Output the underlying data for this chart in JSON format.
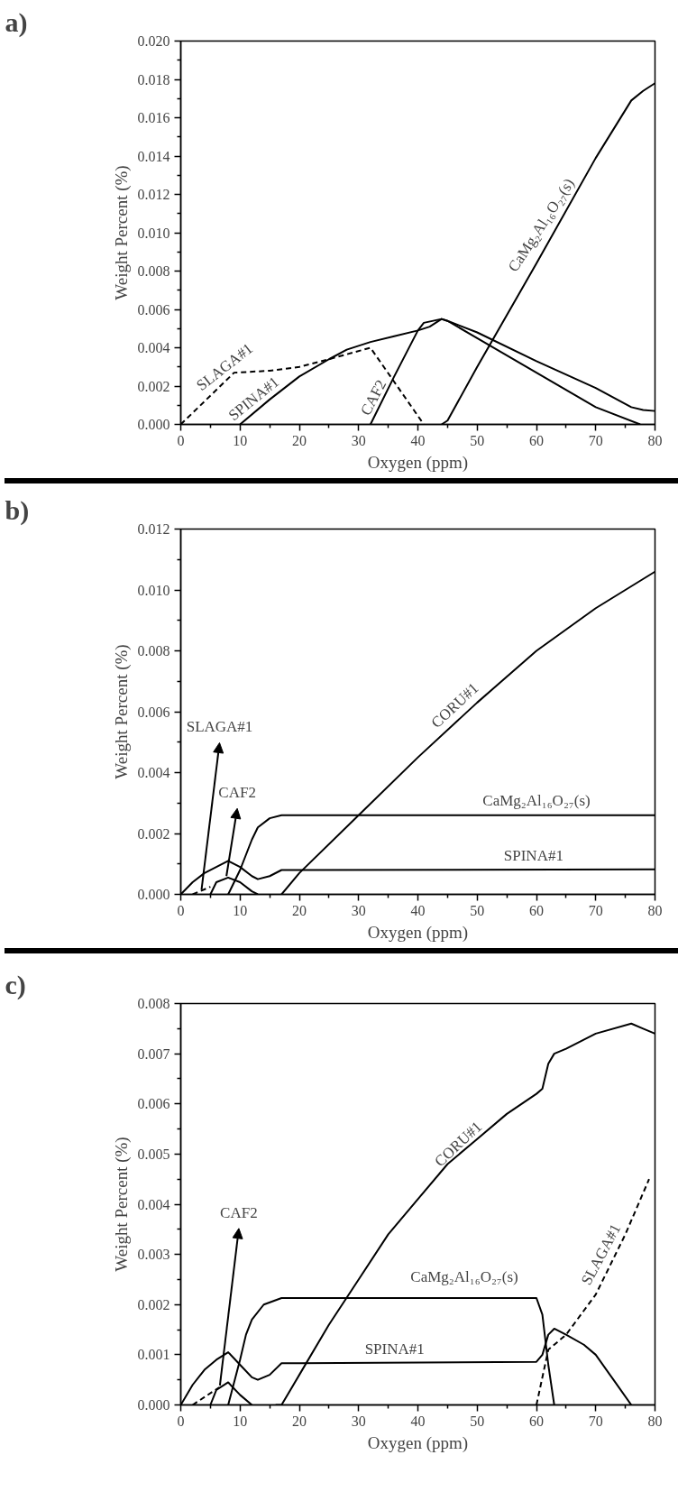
{
  "chart_data": [
    {
      "type": "line",
      "title": "a)",
      "xlabel": "Oxygen (ppm)",
      "ylabel": "Weight Percent (%)",
      "grid": false,
      "xlim": [
        0,
        80
      ],
      "ylim": [
        0,
        0.02
      ],
      "xticks": [
        0,
        10,
        20,
        30,
        40,
        50,
        60,
        70,
        80,
        {
          "value": 5,
          "label": null
        },
        {
          "value": 15,
          "label": null
        },
        {
          "value": 25,
          "label": null
        },
        {
          "value": 35,
          "label": null
        },
        {
          "value": 45,
          "label": null
        },
        {
          "value": 55,
          "label": null
        },
        {
          "value": 65,
          "label": null
        },
        {
          "value": 75,
          "label": null
        }
      ],
      "yticks": [
        {
          "value": 0,
          "label": "0.000"
        },
        0.002,
        0.004,
        0.006,
        0.008,
        {
          "value": 0.01,
          "label": "0.010"
        },
        0.012,
        0.014,
        0.016,
        0.018,
        {
          "value": 0.02,
          "label": "0.020"
        },
        {
          "value": 0.001,
          "label": null
        },
        {
          "value": 0.003,
          "label": null
        },
        {
          "value": 0.005,
          "label": null
        },
        {
          "value": 0.007,
          "label": null
        },
        {
          "value": 0.009,
          "label": null
        },
        {
          "value": 0.011,
          "label": null
        },
        {
          "value": 0.013,
          "label": null
        },
        {
          "value": 0.015,
          "label": null
        },
        {
          "value": 0.017,
          "label": null
        },
        {
          "value": 0.019,
          "label": null
        }
      ],
      "series": [
        {
          "color": "#000000",
          "line_style": "dashed",
          "x": [
            0,
            9,
            15,
            20,
            25,
            32,
            41
          ],
          "values": [
            0,
            0.0027,
            0.0028,
            0.003,
            0.0034,
            0.004,
            0
          ]
        },
        {
          "color": "#000000",
          "line_style": "solid",
          "x": [
            10,
            15,
            20,
            25,
            28,
            32,
            36,
            40,
            42,
            44,
            45,
            50,
            60,
            70,
            76,
            78,
            80
          ],
          "values": [
            0,
            0.0013,
            0.0025,
            0.0034,
            0.0039,
            0.0043,
            0.0046,
            0.0049,
            0.0051,
            0.0055,
            0.0054,
            0.0048,
            0.0033,
            0.0019,
            0.0009,
            0.00075,
            0.0007
          ]
        },
        {
          "color": "#000000",
          "line_style": "solid",
          "x": [
            32,
            36,
            40,
            41,
            44,
            45,
            50,
            60,
            70,
            77.5
          ],
          "values": [
            0,
            0.0025,
            0.0049,
            0.0053,
            0.0055,
            0.0054,
            0.0045,
            0.0027,
            0.0009,
            0
          ]
        },
        {
          "color": "#000000",
          "line_style": "solid",
          "x": [
            44,
            45,
            50,
            60,
            70,
            76,
            78,
            80
          ],
          "values": [
            0,
            0.0002,
            0.003,
            0.0084,
            0.0139,
            0.0169,
            0.0174,
            0.0178
          ]
        }
      ],
      "annotations": [
        "SLAGA#1",
        "SPINA#1",
        "CAF2",
        "CaMg₂Al₁₆O₂₇(s)"
      ]
    },
    {
      "type": "line",
      "title": "b)",
      "xlabel": "Oxygen (ppm)",
      "ylabel": "Weight Percent (%)",
      "grid": false,
      "xlim": [
        0,
        80
      ],
      "ylim": [
        0,
        0.012
      ],
      "xticks": [
        0,
        10,
        20,
        30,
        40,
        50,
        60,
        70,
        80,
        {
          "value": 5,
          "label": null
        },
        {
          "value": 15,
          "label": null
        },
        {
          "value": 25,
          "label": null
        },
        {
          "value": 35,
          "label": null
        },
        {
          "value": 45,
          "label": null
        },
        {
          "value": 55,
          "label": null
        },
        {
          "value": 65,
          "label": null
        },
        {
          "value": 75,
          "label": null
        }
      ],
      "yticks": [
        {
          "value": 0,
          "label": "0.000"
        },
        0.002,
        0.004,
        0.006,
        0.008,
        {
          "value": 0.01,
          "label": "0.010"
        },
        0.012,
        {
          "value": 0.001,
          "label": null
        },
        {
          "value": 0.003,
          "label": null
        },
        {
          "value": 0.005,
          "label": null
        },
        {
          "value": 0.007,
          "label": null
        },
        {
          "value": 0.009,
          "label": null
        },
        {
          "value": 0.011,
          "label": null
        }
      ],
      "series": [
        {
          "color": "#000000",
          "line_style": "solid",
          "x": [
            0,
            2,
            4,
            6,
            8,
            10,
            12,
            13,
            15,
            17,
            20,
            80
          ],
          "values": [
            0,
            0.0004,
            0.0007,
            0.0009,
            0.0011,
            0.0009,
            0.0006,
            0.0005,
            0.0006,
            0.0008,
            0.0008,
            0.00082
          ]
        },
        {
          "color": "#000000",
          "line_style": "dashed",
          "x": [
            2,
            5
          ],
          "values": [
            0,
            0.00025
          ]
        },
        {
          "color": "#000000",
          "line_style": "solid",
          "x": [
            5,
            6,
            8,
            10,
            12,
            13
          ],
          "values": [
            0,
            0.0004,
            0.00055,
            0.0004,
            0.0001,
            0
          ]
        },
        {
          "color": "#000000",
          "line_style": "solid",
          "x": [
            8,
            10,
            12,
            13,
            15,
            17,
            80
          ],
          "values": [
            0,
            0.0008,
            0.0018,
            0.0022,
            0.0025,
            0.0026,
            0.0026
          ]
        },
        {
          "color": "#000000",
          "line_style": "solid",
          "x": [
            17,
            20,
            30,
            40,
            50,
            60,
            70,
            80
          ],
          "values": [
            0,
            0.0007,
            0.0026,
            0.0045,
            0.0063,
            0.008,
            0.0094,
            0.0106
          ]
        }
      ],
      "annotations": [
        {
          "text": "SLAGA#1",
          "x": 3.5,
          "y": 0.00015
        },
        {
          "text": "CAF2",
          "x": 7.7,
          "y": 0.0006
        },
        "CORU#1",
        "CaMg₂Al₁₆O₂₇(s)",
        "SPINA#1"
      ]
    },
    {
      "type": "line",
      "title": "c)",
      "xlabel": "Oxygen (ppm)",
      "ylabel": "Weight Percent (%)",
      "grid": false,
      "xlim": [
        0,
        80
      ],
      "ylim": [
        0,
        0.008
      ],
      "xticks": [
        0,
        10,
        20,
        30,
        40,
        50,
        60,
        70,
        80,
        {
          "value": 5,
          "label": null
        },
        {
          "value": 15,
          "label": null
        },
        {
          "value": 25,
          "label": null
        },
        {
          "value": 35,
          "label": null
        },
        {
          "value": 45,
          "label": null
        },
        {
          "value": 55,
          "label": null
        },
        {
          "value": 65,
          "label": null
        },
        {
          "value": 75,
          "label": null
        }
      ],
      "yticks": [
        {
          "value": 0,
          "label": "0.000"
        },
        0.001,
        0.002,
        0.003,
        0.004,
        0.005,
        0.006,
        0.007,
        0.008,
        {
          "value": 0.0005,
          "label": null
        },
        {
          "value": 0.0015,
          "label": null
        },
        {
          "value": 0.0025,
          "label": null
        },
        {
          "value": 0.0035,
          "label": null
        },
        {
          "value": 0.0045,
          "label": null
        },
        {
          "value": 0.0055,
          "label": null
        },
        {
          "value": 0.0065,
          "label": null
        },
        {
          "value": 0.0075,
          "label": null
        }
      ],
      "series": [
        {
          "color": "#000000",
          "line_style": "solid",
          "x": [
            0,
            2,
            4,
            6,
            8,
            10,
            12,
            13,
            15,
            17,
            20,
            60,
            61,
            62,
            63,
            65,
            68,
            70,
            73,
            76
          ],
          "values": [
            0,
            0.0004,
            0.0007,
            0.0009,
            0.00105,
            0.0008,
            0.00055,
            0.0005,
            0.0006,
            0.00083,
            0.00083,
            0.00086,
            0.001,
            0.0014,
            0.00152,
            0.0014,
            0.0012,
            0.001,
            0.0005,
            0
          ]
        },
        {
          "color": "#000000",
          "line_style": "dashed",
          "x": [
            2,
            6.5,
            33,
            60,
            62,
            65,
            70,
            75,
            79
          ],
          "values": [
            0,
            0.00035,
            null,
            0,
            0.0011,
            0.0014,
            0.0022,
            0.0034,
            0.0045
          ]
        },
        {
          "color": "#000000",
          "line_style": "solid",
          "x": [
            5,
            6,
            8,
            10,
            12
          ],
          "values": [
            0,
            0.0003,
            0.00045,
            0.0002,
            0
          ]
        },
        {
          "color": "#000000",
          "line_style": "solid",
          "x": [
            8,
            10,
            11,
            12,
            14,
            17,
            60,
            61,
            62,
            63
          ],
          "values": [
            0,
            0.0009,
            0.0014,
            0.0017,
            0.002,
            0.00213,
            0.00213,
            0.0018,
            0.0008,
            0
          ]
        },
        {
          "color": "#000000",
          "line_style": "solid",
          "x": [
            16,
            17,
            20,
            25,
            30,
            35,
            40,
            45,
            50,
            55,
            60,
            61,
            62,
            63,
            65,
            70,
            76,
            78,
            80
          ],
          "values": [
            0,
            0,
            0.0006,
            0.0016,
            0.0025,
            0.0034,
            0.0041,
            0.0048,
            0.0053,
            0.0058,
            0.0062,
            0.0063,
            0.0068,
            0.007,
            0.0071,
            0.0074,
            0.0076,
            0.0075,
            0.0074
          ]
        }
      ],
      "annotations": [
        {
          "text": "CAF2",
          "x": 6.6,
          "y": 0.00039
        },
        "CORU#1",
        "CaMg₂Al₁₆O₂₇(s)",
        "SPINA#1",
        "SLAGA#1"
      ]
    }
  ]
}
